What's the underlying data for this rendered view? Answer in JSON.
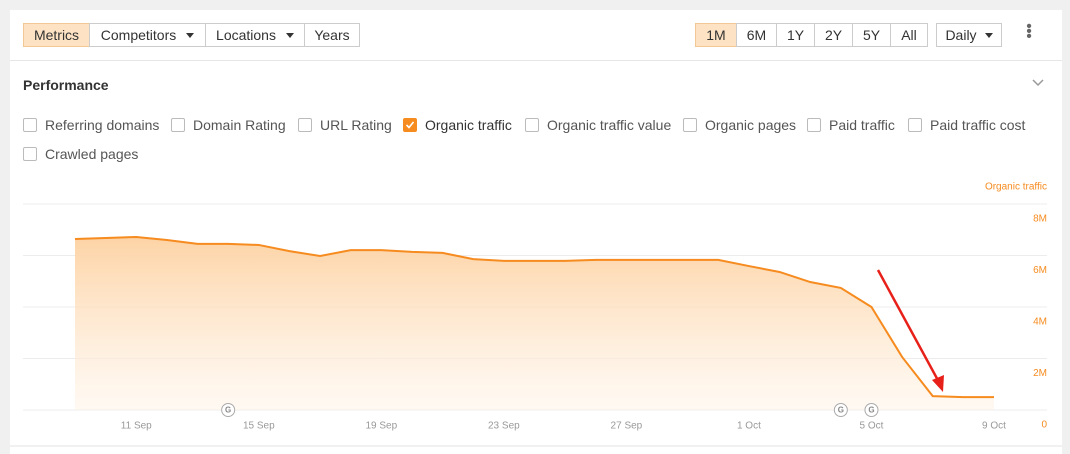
{
  "toolbar": {
    "left": [
      {
        "label": "Metrics",
        "active": true,
        "dropdown": false
      },
      {
        "label": "Competitors",
        "active": false,
        "dropdown": true
      },
      {
        "label": "Locations",
        "active": false,
        "dropdown": true
      },
      {
        "label": "Years",
        "active": false,
        "dropdown": false
      }
    ],
    "periods": [
      {
        "label": "1M",
        "active": true
      },
      {
        "label": "6M",
        "active": false
      },
      {
        "label": "1Y",
        "active": false
      },
      {
        "label": "2Y",
        "active": false
      },
      {
        "label": "5Y",
        "active": false
      },
      {
        "label": "All",
        "active": false
      }
    ],
    "interval": "Daily"
  },
  "section": {
    "title": "Performance",
    "options": [
      {
        "label": "Referring domains",
        "checked": false
      },
      {
        "label": "Domain Rating",
        "checked": false
      },
      {
        "label": "URL Rating",
        "checked": false
      },
      {
        "label": "Organic traffic",
        "checked": true
      },
      {
        "label": "Organic traffic value",
        "checked": false
      },
      {
        "label": "Organic pages",
        "checked": false
      },
      {
        "label": "Paid traffic",
        "checked": false
      },
      {
        "label": "Paid traffic cost",
        "checked": false
      },
      {
        "label": "Crawled pages",
        "checked": false
      }
    ]
  },
  "chart_data": {
    "type": "area",
    "categories": [
      null,
      null,
      "11 Sep",
      null,
      null,
      null,
      "15 Sep",
      null,
      null,
      null,
      "19 Sep",
      null,
      null,
      null,
      "23 Sep",
      null,
      null,
      null,
      "27 Sep",
      null,
      null,
      null,
      "1 Oct",
      null,
      null,
      null,
      "5 Oct",
      null,
      null,
      null,
      "9 Oct"
    ],
    "series": [
      {
        "name": "Organic traffic",
        "color": "#f68b1f",
        "values": [
          6640000,
          6680000,
          6720000,
          6600000,
          6450000,
          6450000,
          6410000,
          6170000,
          5980000,
          6210000,
          6210000,
          6140000,
          6100000,
          5860000,
          5790000,
          5790000,
          5790000,
          5830000,
          5830000,
          5830000,
          5830000,
          5830000,
          5590000,
          5360000,
          4970000,
          4740000,
          4000000,
          2060000,
          540000,
          500000,
          500000
        ]
      }
    ],
    "ylim": [
      0,
      8000000
    ],
    "yticks": [
      {
        "value": 0,
        "label": "0"
      },
      {
        "value": 2000000,
        "label": "2M"
      },
      {
        "value": 4000000,
        "label": "4M"
      },
      {
        "value": 6000000,
        "label": "6M"
      },
      {
        "value": 8000000,
        "label": "8M"
      }
    ],
    "grid": true,
    "annotations": [
      {
        "text": "G",
        "index": 5
      },
      {
        "text": "G",
        "index": 25
      },
      {
        "text": "G",
        "index": 26
      }
    ]
  }
}
